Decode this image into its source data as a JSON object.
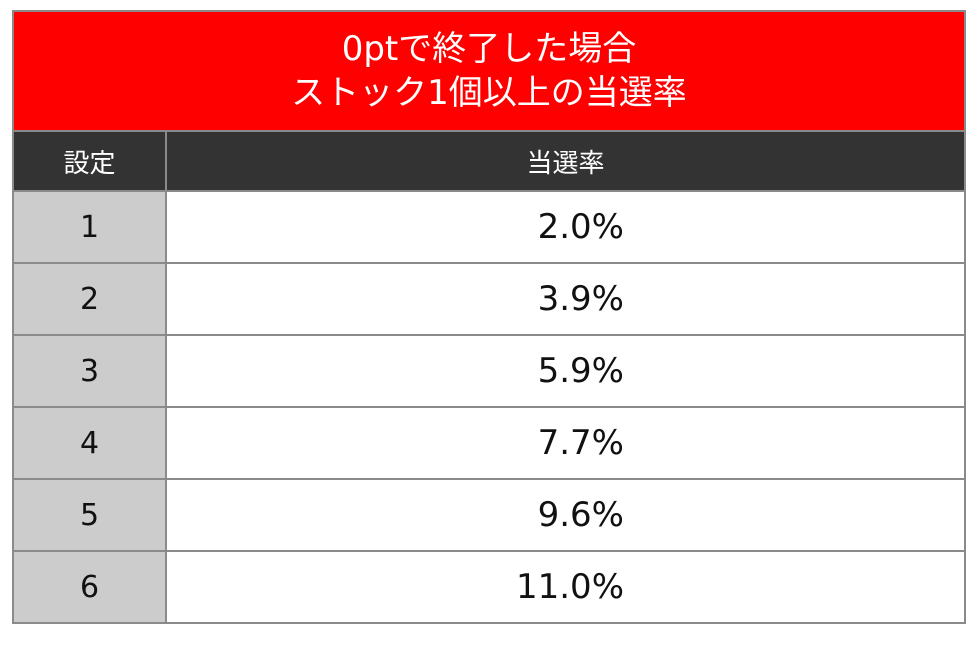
{
  "table": {
    "title": [
      "0ptで終了した場合",
      "ストック1個以上の当選率"
    ],
    "header": [
      "設定",
      "当選率"
    ],
    "rows": [
      [
        "1",
        "2.0%"
      ],
      [
        "2",
        "3.9%"
      ],
      [
        "3",
        "5.9%"
      ],
      [
        "4",
        "7.7%"
      ],
      [
        "5",
        "9.6%"
      ],
      [
        "6",
        "11.0%"
      ]
    ]
  }
}
